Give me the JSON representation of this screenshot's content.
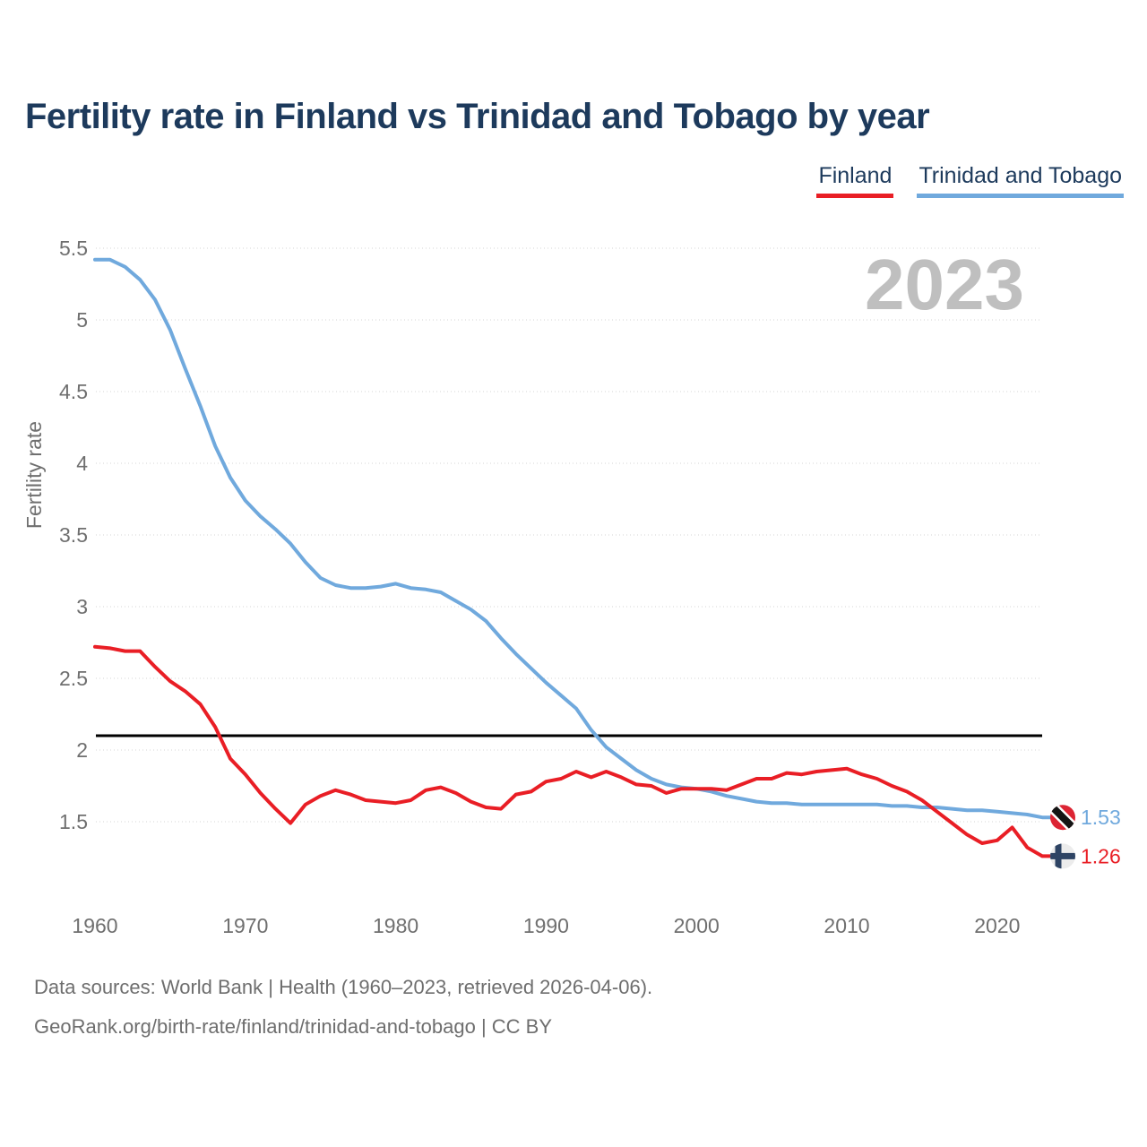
{
  "title": "Fertility rate in Finland vs Trinidad and Tobago by year",
  "legend": {
    "finland_label": "Finland",
    "tt_label": "Trinidad and Tobago"
  },
  "watermark": "2023",
  "colors": {
    "finland": "#e91e25",
    "trinidad_and_tobago": "#70a9dd",
    "reference_line": "#000000",
    "title_text": "#1d3a5c",
    "watermark": "#bfbfbf",
    "flag_tt_red": "#dc2433",
    "flag_tt_black": "#141414",
    "flag_finland_cross": "#2e4464",
    "flag_finland_bg": "#ececec"
  },
  "chart_data": {
    "type": "line",
    "title": "Fertility rate in Finland vs Trinidad and Tobago by year",
    "ylabel": "Fertility rate",
    "xlabel": "",
    "grid": "horizontal-dotted",
    "legend_position": "top-right",
    "x_ticks": [
      1960,
      1970,
      1980,
      1990,
      2000,
      2010,
      2020
    ],
    "y_ticks": [
      5.5,
      5,
      4.5,
      4,
      3.5,
      3,
      2.5,
      2,
      1.5
    ],
    "ylim": [
      1.15,
      5.6
    ],
    "xlim": [
      1960,
      2023
    ],
    "reference_line_y": 2.1,
    "x": [
      1960,
      1961,
      1962,
      1963,
      1964,
      1965,
      1966,
      1967,
      1968,
      1969,
      1970,
      1971,
      1972,
      1973,
      1974,
      1975,
      1976,
      1977,
      1978,
      1979,
      1980,
      1981,
      1982,
      1983,
      1984,
      1985,
      1986,
      1987,
      1988,
      1989,
      1990,
      1991,
      1992,
      1993,
      1994,
      1995,
      1996,
      1997,
      1998,
      1999,
      2000,
      2001,
      2002,
      2003,
      2004,
      2005,
      2006,
      2007,
      2008,
      2009,
      2010,
      2011,
      2012,
      2013,
      2014,
      2015,
      2016,
      2017,
      2018,
      2019,
      2020,
      2021,
      2022,
      2023
    ],
    "series": [
      {
        "name": "Finland",
        "color": "#e91e25",
        "end_label": "1.26",
        "values": [
          2.72,
          2.71,
          2.69,
          2.69,
          2.58,
          2.48,
          2.41,
          2.32,
          2.16,
          1.94,
          1.83,
          1.7,
          1.59,
          1.49,
          1.62,
          1.68,
          1.72,
          1.69,
          1.65,
          1.64,
          1.63,
          1.65,
          1.72,
          1.74,
          1.7,
          1.64,
          1.6,
          1.59,
          1.69,
          1.71,
          1.78,
          1.8,
          1.85,
          1.81,
          1.85,
          1.81,
          1.76,
          1.75,
          1.7,
          1.73,
          1.73,
          1.73,
          1.72,
          1.76,
          1.8,
          1.8,
          1.84,
          1.83,
          1.85,
          1.86,
          1.87,
          1.83,
          1.8,
          1.75,
          1.71,
          1.65,
          1.57,
          1.49,
          1.41,
          1.35,
          1.37,
          1.46,
          1.32,
          1.26
        ]
      },
      {
        "name": "Trinidad and Tobago",
        "color": "#70a9dd",
        "end_label": "1.53",
        "values": [
          5.42,
          5.42,
          5.37,
          5.28,
          5.14,
          4.93,
          4.66,
          4.4,
          4.12,
          3.9,
          3.74,
          3.63,
          3.54,
          3.44,
          3.31,
          3.2,
          3.15,
          3.13,
          3.13,
          3.14,
          3.16,
          3.13,
          3.12,
          3.1,
          3.04,
          2.98,
          2.9,
          2.78,
          2.67,
          2.57,
          2.47,
          2.38,
          2.29,
          2.14,
          2.02,
          1.94,
          1.86,
          1.8,
          1.76,
          1.74,
          1.73,
          1.71,
          1.68,
          1.66,
          1.64,
          1.63,
          1.63,
          1.62,
          1.62,
          1.62,
          1.62,
          1.62,
          1.62,
          1.61,
          1.61,
          1.6,
          1.6,
          1.59,
          1.58,
          1.58,
          1.57,
          1.56,
          1.55,
          1.53
        ]
      }
    ]
  },
  "footer": {
    "line1": "Data sources: World Bank | Health (1960–2023, retrieved 2026-04-06).",
    "line2": "GeoRank.org/birth-rate/finland/trinidad-and-tobago | CC BY"
  }
}
